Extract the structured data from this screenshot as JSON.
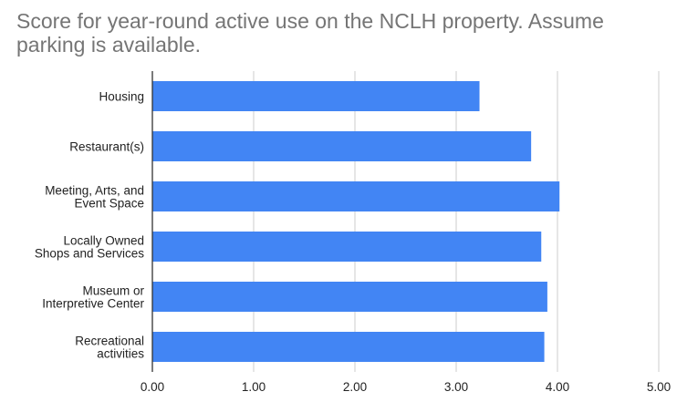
{
  "chart_data": {
    "type": "bar",
    "orientation": "horizontal",
    "title": "Score for year-round active use on the NCLH property. Assume parking is available.",
    "categories": [
      [
        "Housing"
      ],
      [
        "Restaurant(s)"
      ],
      [
        "Meeting, Arts, and",
        "Event Space"
      ],
      [
        "Locally Owned",
        "Shops and Services"
      ],
      [
        "Museum or",
        "Interpretive Center"
      ],
      [
        "Recreational",
        "activities"
      ]
    ],
    "values": [
      3.23,
      3.74,
      4.02,
      3.84,
      3.9,
      3.87
    ],
    "xlim": [
      0,
      5
    ],
    "xticks": [
      "0.00",
      "1.00",
      "2.00",
      "3.00",
      "4.00",
      "5.00"
    ],
    "grid": "vertical",
    "bar_color": "#4285f4",
    "grid_color": "#cccccc",
    "axis_color": "#333333"
  }
}
